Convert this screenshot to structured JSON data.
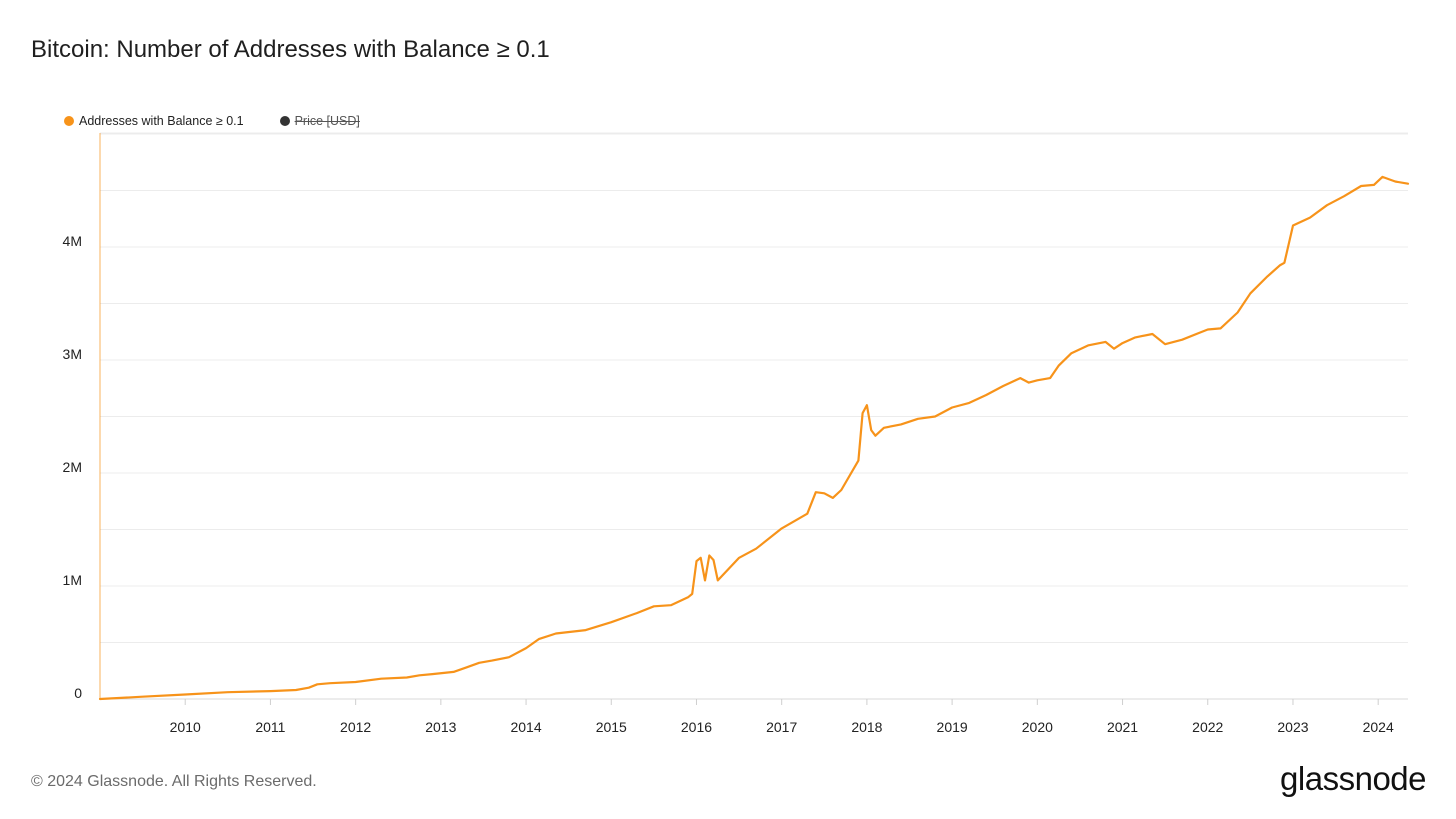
{
  "page": {
    "title": "Bitcoin: Number of Addresses with Balance ≥ 0.1",
    "copyright": "© 2024 Glassnode. All Rights Reserved.",
    "brand": "glassnode"
  },
  "legend": {
    "items": [
      {
        "label": "Addresses with Balance ≥ 0.1",
        "color": "#f7931a",
        "hidden": false
      },
      {
        "label": "Price [USD]",
        "color": "#333333",
        "hidden": true
      }
    ]
  },
  "colors": {
    "series": "#f7931a",
    "grid": "#ececec",
    "axis_text": "#222222"
  },
  "chart_data": {
    "type": "line",
    "title": "Bitcoin: Number of Addresses with Balance ≥ 0.1",
    "xlabel": "",
    "ylabel": "",
    "grid": true,
    "legend_position": "top-left",
    "xlim": [
      2009.0,
      2024.35
    ],
    "ylim": [
      0,
      5000000
    ],
    "x_ticks": [
      2010,
      2011,
      2012,
      2013,
      2014,
      2015,
      2016,
      2017,
      2018,
      2019,
      2020,
      2021,
      2022,
      2023,
      2024
    ],
    "x_tick_labels": [
      "2010",
      "2011",
      "2012",
      "2013",
      "2014",
      "2015",
      "2016",
      "2017",
      "2018",
      "2019",
      "2020",
      "2021",
      "2022",
      "2023",
      "2024"
    ],
    "y_ticks": [
      0,
      1000000,
      2000000,
      3000000,
      4000000
    ],
    "y_tick_labels": [
      "0",
      "1M",
      "2M",
      "3M",
      "4M"
    ],
    "series": [
      {
        "name": "Addresses with Balance ≥ 0.1",
        "color": "#f7931a",
        "x": [
          2009.0,
          2009.5,
          2010.0,
          2010.5,
          2011.0,
          2011.3,
          2011.45,
          2011.55,
          2011.7,
          2012.0,
          2012.3,
          2012.6,
          2012.75,
          2012.9,
          2013.15,
          2013.3,
          2013.45,
          2013.6,
          2013.8,
          2014.0,
          2014.15,
          2014.35,
          2014.7,
          2015.0,
          2015.3,
          2015.5,
          2015.7,
          2015.9,
          2015.95,
          2016.0,
          2016.05,
          2016.1,
          2016.15,
          2016.2,
          2016.25,
          2016.5,
          2016.7,
          2017.0,
          2017.3,
          2017.4,
          2017.5,
          2017.6,
          2017.7,
          2017.9,
          2017.95,
          2018.0,
          2018.05,
          2018.1,
          2018.2,
          2018.4,
          2018.6,
          2018.8,
          2019.0,
          2019.2,
          2019.4,
          2019.6,
          2019.8,
          2019.9,
          2020.0,
          2020.15,
          2020.25,
          2020.4,
          2020.6,
          2020.8,
          2020.9,
          2021.0,
          2021.15,
          2021.35,
          2021.5,
          2021.7,
          2021.9,
          2022.0,
          2022.15,
          2022.35,
          2022.5,
          2022.7,
          2022.85,
          2022.9,
          2023.0,
          2023.2,
          2023.4,
          2023.6,
          2023.8,
          2023.95,
          2024.05,
          2024.2,
          2024.35
        ],
        "values": [
          0,
          20000,
          40000,
          60000,
          70000,
          80000,
          100000,
          130000,
          140000,
          150000,
          180000,
          190000,
          210000,
          220000,
          240000,
          280000,
          320000,
          340000,
          370000,
          450000,
          530000,
          580000,
          610000,
          680000,
          760000,
          820000,
          830000,
          900000,
          930000,
          1220000,
          1250000,
          1050000,
          1270000,
          1230000,
          1050000,
          1250000,
          1330000,
          1510000,
          1640000,
          1830000,
          1820000,
          1780000,
          1850000,
          2110000,
          2530000,
          2600000,
          2380000,
          2330000,
          2400000,
          2430000,
          2480000,
          2500000,
          2580000,
          2620000,
          2690000,
          2770000,
          2840000,
          2800000,
          2820000,
          2840000,
          2950000,
          3060000,
          3130000,
          3160000,
          3100000,
          3150000,
          3200000,
          3230000,
          3140000,
          3180000,
          3240000,
          3270000,
          3280000,
          3420000,
          3590000,
          3740000,
          3840000,
          3860000,
          4190000,
          4260000,
          4370000,
          4450000,
          4540000,
          4550000,
          4620000,
          4580000,
          4560000
        ]
      }
    ]
  }
}
